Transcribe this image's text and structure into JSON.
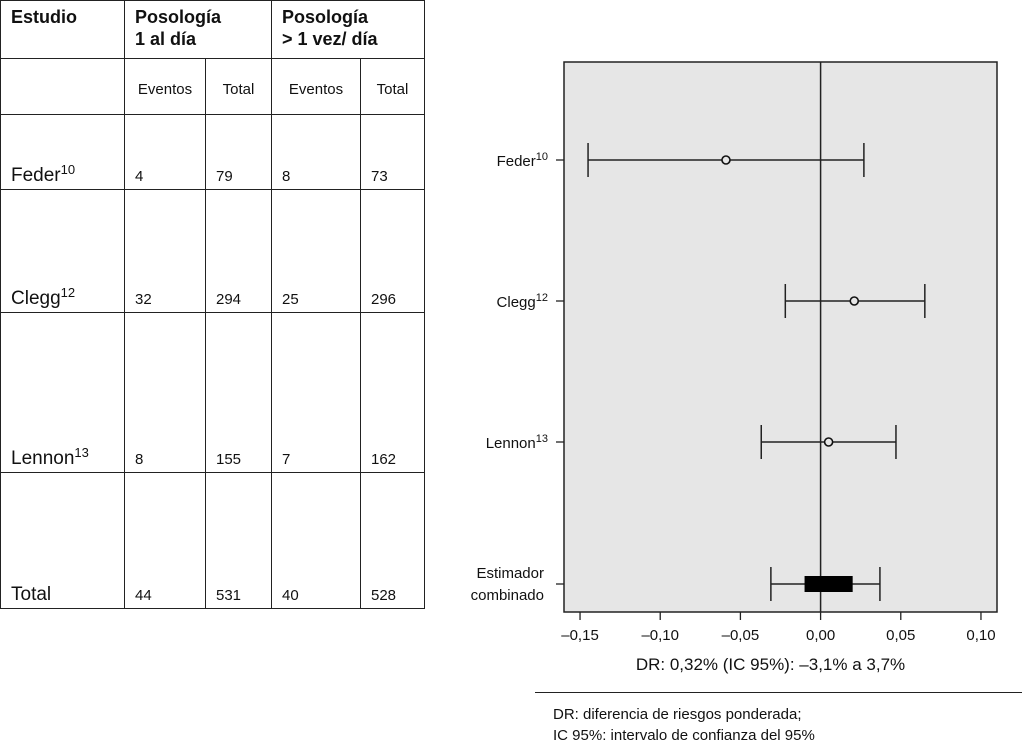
{
  "table": {
    "headers": {
      "study": "Estudio",
      "once_daily": [
        "Posología",
        "1 al día"
      ],
      "multi_daily": [
        "Posología",
        "> 1 vez/ día"
      ],
      "sub": [
        "Eventos",
        "Total",
        "Eventos",
        "Total"
      ]
    },
    "rows": [
      {
        "name": "Feder",
        "ref": "10",
        "values": [
          "4",
          "79",
          "8",
          "73"
        ]
      },
      {
        "name": "Clegg",
        "ref": "12",
        "values": [
          "32",
          "294",
          "25",
          "296"
        ]
      },
      {
        "name": "Lennon",
        "ref": "13",
        "values": [
          "8",
          "155",
          "7",
          "162"
        ]
      },
      {
        "name": "Total",
        "ref": "",
        "values": [
          "44",
          "531",
          "40",
          "528"
        ]
      }
    ]
  },
  "chart_data": {
    "type": "forest",
    "studies": [
      {
        "label": "Feder",
        "ref": "10",
        "estimate": -0.059,
        "ci": [
          -0.145,
          0.027
        ]
      },
      {
        "label": "Clegg",
        "ref": "12",
        "estimate": 0.021,
        "ci": [
          -0.022,
          0.065
        ]
      },
      {
        "label": "Lennon",
        "ref": "13",
        "estimate": 0.005,
        "ci": [
          -0.037,
          0.047
        ]
      }
    ],
    "pooled": {
      "label": [
        "Estimador",
        "combinado"
      ],
      "estimate": 0.0032,
      "ci": [
        -0.031,
        0.037
      ],
      "box": [
        -0.01,
        0.02
      ]
    },
    "xlim": [
      -0.16,
      0.11
    ],
    "xticks": [
      -0.15,
      -0.1,
      -0.05,
      0.0,
      0.05,
      0.1
    ],
    "xtick_labels": [
      "–0,15",
      "–0,10",
      "–0,05",
      "0,00",
      "0,05",
      "0,10"
    ],
    "reference_line": 0,
    "xlabel": "DR: 0,32% (IC 95%): –3,1% a 3,7%",
    "background": "#e6e6e6"
  },
  "footnote": {
    "lines": [
      "DR: diferencia de riesgos ponderada;",
      "IC 95%: intervalo de confianza del 95%"
    ]
  }
}
